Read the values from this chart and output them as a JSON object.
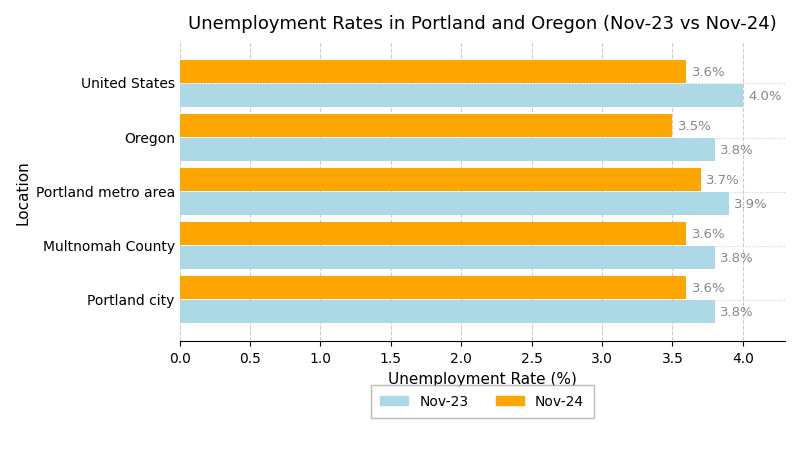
{
  "title": "Unemployment Rates in Portland and Oregon (Nov-23 vs Nov-24)",
  "xlabel": "Unemployment Rate (%)",
  "ylabel": "Location",
  "categories": [
    "Portland city",
    "Multnomah County",
    "Portland metro area",
    "Oregon",
    "United States"
  ],
  "nov23_values": [
    3.8,
    3.8,
    3.9,
    3.8,
    4.0
  ],
  "nov24_values": [
    3.6,
    3.6,
    3.7,
    3.5,
    3.6
  ],
  "nov23_color": "#ADD8E6",
  "nov24_color": "#FFA500",
  "xlim": [
    0,
    4.3
  ],
  "xticks": [
    0.0,
    0.5,
    1.0,
    1.5,
    2.0,
    2.5,
    3.0,
    3.5,
    4.0
  ],
  "bar_height": 0.42,
  "label_fontsize": 9.5,
  "title_fontsize": 13,
  "axis_label_fontsize": 11,
  "tick_fontsize": 10,
  "legend_fontsize": 10,
  "background_color": "#ffffff",
  "grid_color": "#cccccc",
  "text_color": "#888888"
}
